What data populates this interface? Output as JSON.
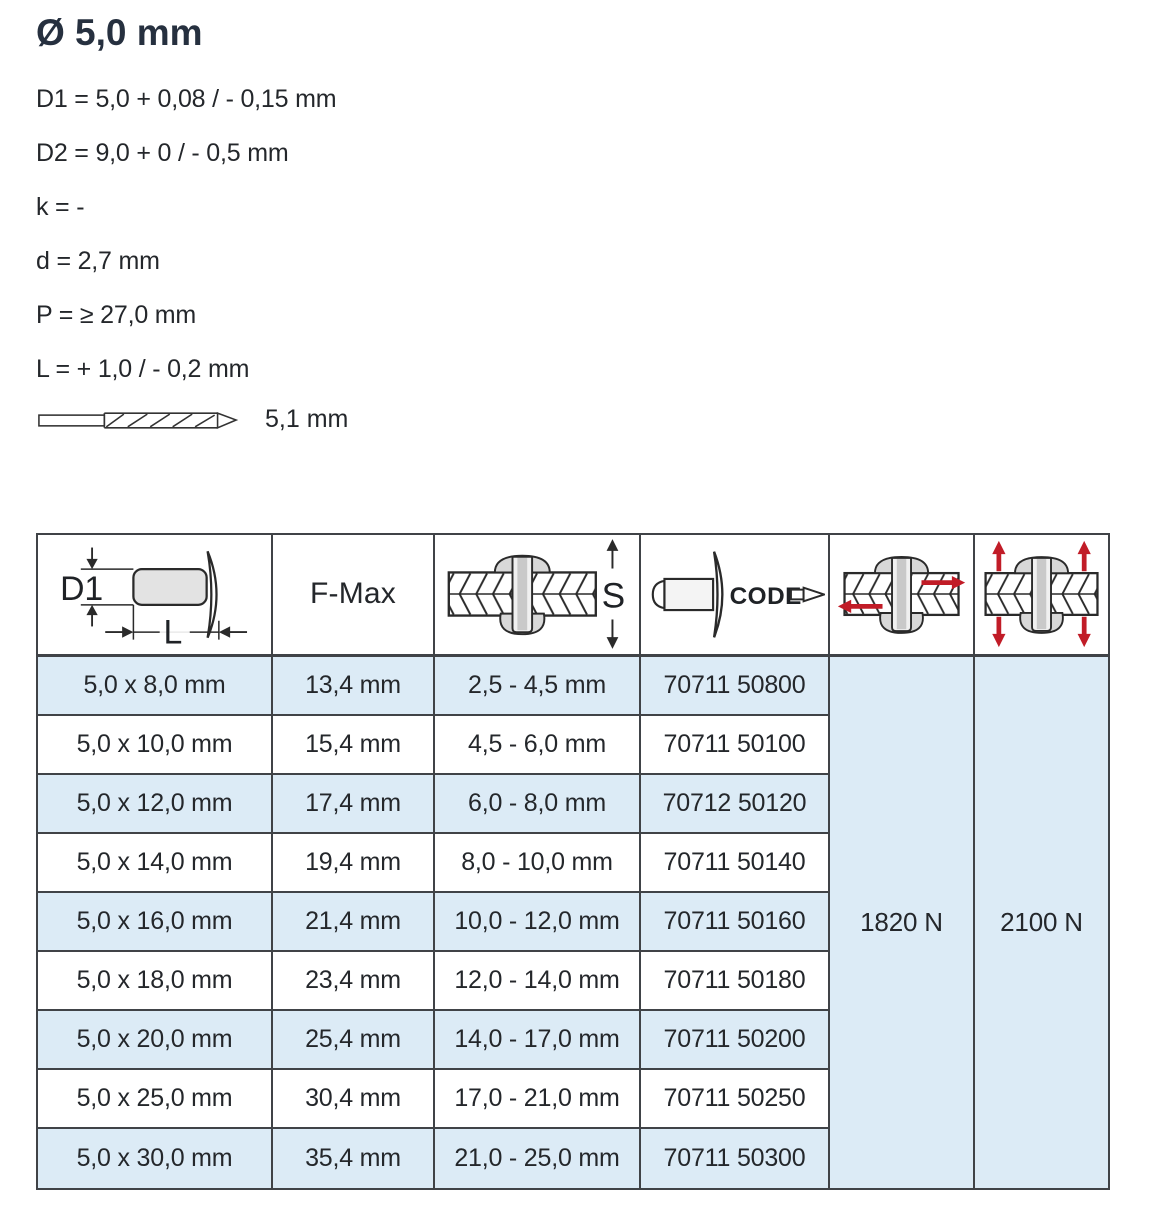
{
  "page": {
    "title": "Ø 5,0 mm",
    "specs": [
      "D1 = 5,0 + 0,08 / - 0,15 mm",
      "D2 = 9,0 + 0 / - 0,5 mm",
      "k = -",
      "d = 2,7 mm",
      "P = ≥ 27,0 mm",
      "L = + 1,0 / - 0,2 mm"
    ],
    "drill_diameter_label": "5,1 mm"
  },
  "table": {
    "header": {
      "d1_label": "D1",
      "l_label": "L",
      "fmax_label": "F-Max",
      "s_label": "S",
      "code_label": "CODE"
    },
    "column_keys": [
      "dim",
      "fmax",
      "grip",
      "code"
    ],
    "rows": [
      {
        "dim": "5,0 x 8,0 mm",
        "fmax": "13,4 mm",
        "grip": "2,5 - 4,5 mm",
        "code": "70711 50800"
      },
      {
        "dim": "5,0 x 10,0 mm",
        "fmax": "15,4 mm",
        "grip": "4,5 - 6,0 mm",
        "code": "70711 50100"
      },
      {
        "dim": "5,0 x 12,0 mm",
        "fmax": "17,4 mm",
        "grip": "6,0 - 8,0 mm",
        "code": "70712 50120"
      },
      {
        "dim": "5,0 x 14,0 mm",
        "fmax": "19,4 mm",
        "grip": "8,0 - 10,0 mm",
        "code": "70711 50140"
      },
      {
        "dim": "5,0 x 16,0 mm",
        "fmax": "21,4 mm",
        "grip": "10,0 - 12,0 mm",
        "code": "70711 50160"
      },
      {
        "dim": "5,0 x 18,0 mm",
        "fmax": "23,4 mm",
        "grip": "12,0 - 14,0 mm",
        "code": "70711 50180"
      },
      {
        "dim": "5,0 x 20,0 mm",
        "fmax": "25,4 mm",
        "grip": "14,0 - 17,0 mm",
        "code": "70711 50200"
      },
      {
        "dim": "5,0 x 25,0 mm",
        "fmax": "30,4 mm",
        "grip": "17,0 - 21,0 mm",
        "code": "70711 50250"
      },
      {
        "dim": "5,0 x 30,0 mm",
        "fmax": "35,4 mm",
        "grip": "21,0 - 25,0 mm",
        "code": "70711 50300"
      }
    ],
    "shear_strength": "1820 N",
    "tensile_strength": "2100 N"
  },
  "colors": {
    "row_highlight_blue": "#dcebf6",
    "arrow_red": "#c11c27",
    "table_border": "#404347",
    "title_text": "#26303f"
  }
}
